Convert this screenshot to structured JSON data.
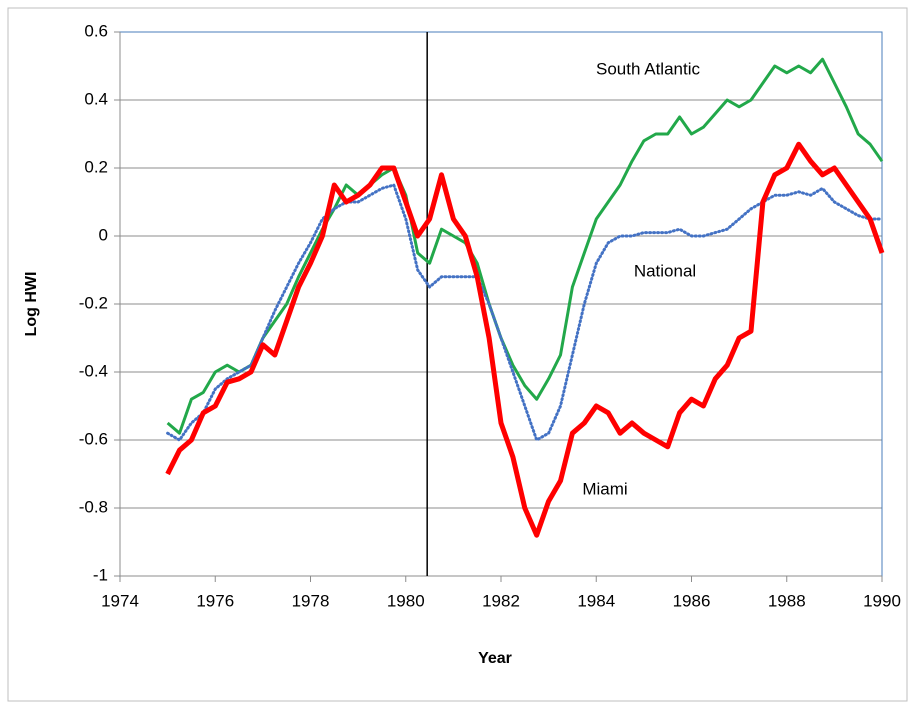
{
  "chart_data": {
    "type": "line",
    "x_label": "Year",
    "y_label": "Log HWI",
    "xlim": [
      1974,
      1990
    ],
    "ylim": [
      -1,
      0.6
    ],
    "xticks": [
      1974,
      1976,
      1978,
      1980,
      1982,
      1984,
      1986,
      1988,
      1990
    ],
    "yticks": [
      -1,
      -0.8,
      -0.6,
      -0.4,
      -0.2,
      0,
      0.2,
      0.4,
      0.6
    ],
    "grid": true,
    "vline": 1980.45,
    "x": [
      1975,
      1975.25,
      1975.5,
      1975.75,
      1976,
      1976.25,
      1976.5,
      1976.75,
      1977,
      1977.25,
      1977.5,
      1977.75,
      1978,
      1978.25,
      1978.5,
      1978.75,
      1979,
      1979.25,
      1979.5,
      1979.75,
      1980,
      1980.25,
      1980.5,
      1980.75,
      1981,
      1981.25,
      1981.5,
      1981.75,
      1982,
      1982.25,
      1982.5,
      1982.75,
      1983,
      1983.25,
      1983.5,
      1983.75,
      1984,
      1984.25,
      1984.5,
      1984.75,
      1985,
      1985.25,
      1985.5,
      1985.75,
      1986,
      1986.25,
      1986.5,
      1986.75,
      1987,
      1987.25,
      1987.5,
      1987.75,
      1988,
      1988.25,
      1988.5,
      1988.75,
      1989,
      1989.25,
      1989.5,
      1989.75,
      1990
    ],
    "series": [
      {
        "name": "South Atlantic",
        "color": "#22a84a",
        "style": "solid",
        "width": 3,
        "values": [
          -0.55,
          -0.58,
          -0.48,
          -0.46,
          -0.4,
          -0.38,
          -0.4,
          -0.38,
          -0.3,
          -0.25,
          -0.2,
          -0.12,
          -0.05,
          0.02,
          0.08,
          0.15,
          0.12,
          0.15,
          0.18,
          0.2,
          0.12,
          -0.05,
          -0.08,
          0.02,
          0,
          -0.02,
          -0.08,
          -0.2,
          -0.3,
          -0.38,
          -0.44,
          -0.48,
          -0.42,
          -0.35,
          -0.15,
          -0.05,
          0.05,
          0.1,
          0.15,
          0.22,
          0.28,
          0.3,
          0.3,
          0.35,
          0.3,
          0.32,
          0.36,
          0.4,
          0.38,
          0.4,
          0.45,
          0.5,
          0.48,
          0.5,
          0.48,
          0.52,
          0.45,
          0.38,
          0.3,
          0.27,
          0.22
        ]
      },
      {
        "name": "National",
        "color": "#4472c4",
        "style": "dotted",
        "width": 3,
        "values": [
          -0.58,
          -0.6,
          -0.55,
          -0.52,
          -0.45,
          -0.42,
          -0.4,
          -0.38,
          -0.3,
          -0.22,
          -0.15,
          -0.08,
          -0.02,
          0.05,
          0.08,
          0.1,
          0.1,
          0.12,
          0.14,
          0.15,
          0.05,
          -0.1,
          -0.15,
          -0.12,
          -0.12,
          -0.12,
          -0.12,
          -0.2,
          -0.3,
          -0.4,
          -0.5,
          -0.6,
          -0.58,
          -0.5,
          -0.35,
          -0.2,
          -0.08,
          -0.02,
          0,
          0,
          0.01,
          0.01,
          0.01,
          0.02,
          0,
          0,
          0.01,
          0.02,
          0.05,
          0.08,
          0.1,
          0.12,
          0.12,
          0.13,
          0.12,
          0.14,
          0.1,
          0.08,
          0.06,
          0.05,
          0.05
        ]
      },
      {
        "name": "Miami",
        "color": "#ff0000",
        "style": "solid",
        "width": 5,
        "values": [
          -0.7,
          -0.63,
          -0.6,
          -0.52,
          -0.5,
          -0.43,
          -0.42,
          -0.4,
          -0.32,
          -0.35,
          -0.25,
          -0.15,
          -0.08,
          0,
          0.15,
          0.1,
          0.12,
          0.15,
          0.2,
          0.2,
          0.1,
          0,
          0.05,
          0.18,
          0.05,
          0,
          -0.12,
          -0.3,
          -0.55,
          -0.65,
          -0.8,
          -0.88,
          -0.78,
          -0.72,
          -0.58,
          -0.55,
          -0.5,
          -0.52,
          -0.58,
          -0.55,
          -0.58,
          -0.6,
          -0.62,
          -0.52,
          -0.48,
          -0.5,
          -0.42,
          -0.38,
          -0.3,
          -0.28,
          0.1,
          0.18,
          0.2,
          0.27,
          0.22,
          0.18,
          0.2,
          0.15,
          0.1,
          0.05,
          -0.05
        ]
      }
    ]
  }
}
